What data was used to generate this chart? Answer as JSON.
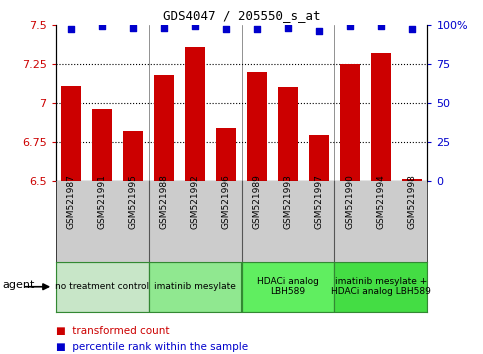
{
  "title": "GDS4047 / 205550_s_at",
  "samples": [
    "GSM521987",
    "GSM521991",
    "GSM521995",
    "GSM521988",
    "GSM521992",
    "GSM521996",
    "GSM521989",
    "GSM521993",
    "GSM521997",
    "GSM521990",
    "GSM521994",
    "GSM521998"
  ],
  "bar_values": [
    7.11,
    6.96,
    6.82,
    7.18,
    7.36,
    6.84,
    7.2,
    7.1,
    6.79,
    7.25,
    7.32,
    6.51
  ],
  "dot_values": [
    97,
    99,
    98,
    98,
    99,
    97,
    97,
    98,
    96,
    99,
    99,
    97
  ],
  "ylim_left": [
    6.5,
    7.5
  ],
  "ylim_right": [
    0,
    100
  ],
  "yticks_left": [
    6.5,
    6.75,
    7.0,
    7.25,
    7.5
  ],
  "ytick_labels_left": [
    "6.5",
    "6.75",
    "7",
    "7.25",
    "7.5"
  ],
  "yticks_right": [
    0,
    25,
    50,
    75,
    100
  ],
  "ytick_labels_right": [
    "0",
    "25",
    "50",
    "75",
    "100%"
  ],
  "bar_color": "#cc0000",
  "dot_color": "#0000cc",
  "agent_groups": [
    {
      "label": "no treatment control",
      "start": 0,
      "end": 3,
      "color": "#c8e6c8"
    },
    {
      "label": "imatinib mesylate",
      "start": 3,
      "end": 6,
      "color": "#90e890"
    },
    {
      "label": "HDACi analog\nLBH589",
      "start": 6,
      "end": 9,
      "color": "#60ee60"
    },
    {
      "label": "imatinib mesylate +\nHDACi analog LBH589",
      "start": 9,
      "end": 12,
      "color": "#44dd44"
    }
  ],
  "xlabel": "agent",
  "legend_bar_label": "transformed count",
  "legend_dot_label": "percentile rank within the sample",
  "tick_area_color": "#cccccc",
  "dividers": [
    2.5,
    5.5,
    8.5
  ],
  "hgrid_lines": [
    6.75,
    7.0,
    7.25
  ]
}
